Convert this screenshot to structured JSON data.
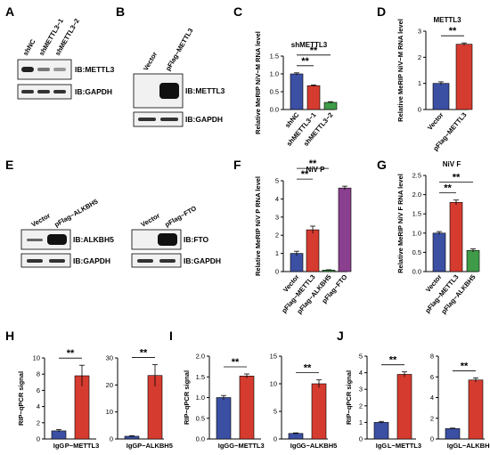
{
  "colors": {
    "blue": "#3b4fa3",
    "red": "#d63b2f",
    "green": "#3f9b48",
    "purple": "#8b3f8f",
    "err_pink": "#f08aa8"
  },
  "panel_labels": {
    "A": "A",
    "B": "B",
    "C": "C",
    "D": "D",
    "E": "E",
    "F": "F",
    "G": "G",
    "H": "H",
    "I": "I",
    "J": "J"
  },
  "blots": {
    "A": {
      "lanes": [
        "shNC",
        "shMETTL3−1",
        "shMETTL3−2"
      ],
      "label1": "IB:METTL3",
      "label2": "IB:GAPDH"
    },
    "B": {
      "lanes": [
        "Vector",
        "pFlag−METTL3"
      ],
      "label1": "IB:METTL3",
      "label2": "IB:GAPDH"
    },
    "E1": {
      "lanes": [
        "Vector",
        "pFlag−ALKBH5"
      ],
      "label1": "IB:ALKBH5",
      "label2": "IB:GAPDH"
    },
    "E2": {
      "lanes": [
        "Vector",
        "pFlag−FTO"
      ],
      "label1": "IB:FTO",
      "label2": "IB:GAPDH"
    }
  },
  "chart_data": [
    {
      "panel": "C",
      "type": "bar",
      "title": "shMETTL3",
      "ylabel": "Relative MeRIP NiV−M RNA level",
      "categories": [
        "shNC",
        "shMETTL3−1",
        "shMETTL3−2"
      ],
      "values": [
        1.0,
        0.67,
        0.2
      ],
      "errors": [
        0.03,
        0.02,
        0.02
      ],
      "colors": [
        "#3b4fa3",
        "#d63b2f",
        "#3f9b48"
      ],
      "ylim": [
        0,
        1.5
      ],
      "yticks": [
        0.0,
        0.5,
        1.0,
        1.5
      ],
      "significance": [
        {
          "from": 0,
          "to": 1,
          "label": "**"
        },
        {
          "from": 0,
          "to": 2,
          "label": "**"
        }
      ]
    },
    {
      "panel": "D",
      "type": "bar",
      "title": "METTL3",
      "ylabel": "Relative MeRIP NiV−M RNA level",
      "categories": [
        "Vector",
        "pFlag−METTL3"
      ],
      "values": [
        1.0,
        2.5
      ],
      "errors": [
        0.06,
        0.05
      ],
      "colors": [
        "#3b4fa3",
        "#d63b2f"
      ],
      "ylim": [
        0,
        3
      ],
      "yticks": [
        0,
        1,
        2,
        3
      ],
      "significance": [
        {
          "from": 0,
          "to": 1,
          "label": "**"
        }
      ]
    },
    {
      "panel": "F",
      "type": "bar",
      "title": "NiV P",
      "ylabel": "Relative MeRIP NiV P RNA level",
      "categories": [
        "Vector",
        "pFlag−METTL3",
        "pFlag−ALKBH5",
        "pFlag−FTO"
      ],
      "values": [
        1.0,
        2.3,
        0.08,
        4.6
      ],
      "errors": [
        0.12,
        0.2,
        0.02,
        0.1
      ],
      "colors": [
        "#3b4fa3",
        "#d63b2f",
        "#3f9b48",
        "#8b3f8f"
      ],
      "ylim": [
        0,
        5
      ],
      "yticks": [
        0,
        1,
        2,
        3,
        4,
        5
      ],
      "significance": [
        {
          "from": 0,
          "to": 1,
          "label": "**"
        },
        {
          "from": 0,
          "to": 2,
          "label": "**"
        }
      ]
    },
    {
      "panel": "G",
      "type": "bar",
      "title": "NiV F",
      "ylabel": "Relative MeRIP NiV F RNA level",
      "categories": [
        "Vector",
        "pFlag−METTL3",
        "pFlag−ALKBH5"
      ],
      "values": [
        1.0,
        1.8,
        0.55
      ],
      "errors": [
        0.04,
        0.06,
        0.04
      ],
      "colors": [
        "#3b4fa3",
        "#d63b2f",
        "#3f9b48"
      ],
      "ylim": [
        0,
        2.5
      ],
      "yticks": [
        0.0,
        0.5,
        1.0,
        1.5,
        2.0,
        2.5
      ],
      "significance": [
        {
          "from": 0,
          "to": 1,
          "label": "**"
        },
        {
          "from": 0,
          "to": 2,
          "label": "**"
        }
      ]
    },
    {
      "panel": "H1",
      "type": "bar",
      "title": "",
      "ylabel": "RIP−qPCR signal",
      "categories": [
        "IgG",
        "P−METTL3"
      ],
      "values": [
        1.0,
        7.8
      ],
      "errors": [
        0.15,
        1.3
      ],
      "colors": [
        "#3b4fa3",
        "#d63b2f"
      ],
      "ylim": [
        0,
        10
      ],
      "yticks": [
        0,
        2,
        4,
        6,
        8,
        10
      ],
      "significance": [
        {
          "from": 0,
          "to": 1,
          "label": "**"
        }
      ]
    },
    {
      "panel": "H2",
      "type": "bar",
      "title": "",
      "ylabel": "",
      "categories": [
        "IgG",
        "P−ALKBH5"
      ],
      "values": [
        1.0,
        23.5
      ],
      "errors": [
        0.2,
        4.0
      ],
      "colors": [
        "#3b4fa3",
        "#d63b2f"
      ],
      "ylim": [
        0,
        30
      ],
      "yticks": [
        0,
        10,
        20,
        30
      ],
      "significance": [
        {
          "from": 0,
          "to": 1,
          "label": "**"
        }
      ]
    },
    {
      "panel": "I1",
      "type": "bar",
      "title": "",
      "ylabel": "RIP−qPCR signal",
      "categories": [
        "IgG",
        "G−METTL3"
      ],
      "values": [
        1.0,
        1.52
      ],
      "errors": [
        0.05,
        0.05
      ],
      "colors": [
        "#3b4fa3",
        "#d63b2f"
      ],
      "ylim": [
        0,
        2.0
      ],
      "yticks": [
        0.0,
        0.5,
        1.0,
        1.5,
        2.0
      ],
      "significance": [
        {
          "from": 0,
          "to": 1,
          "label": "**"
        }
      ]
    },
    {
      "panel": "I2",
      "type": "bar",
      "title": "",
      "ylabel": "",
      "categories": [
        "IgG",
        "G−ALKBH5"
      ],
      "values": [
        1.0,
        10.0
      ],
      "errors": [
        0.1,
        0.7
      ],
      "colors": [
        "#3b4fa3",
        "#d63b2f"
      ],
      "ylim": [
        0,
        15
      ],
      "yticks": [
        0,
        5,
        10,
        15
      ],
      "significance": [
        {
          "from": 0,
          "to": 1,
          "label": "**"
        }
      ]
    },
    {
      "panel": "J1",
      "type": "bar",
      "title": "",
      "ylabel": "RIP−qPCR signal",
      "categories": [
        "IgG",
        "L−METTL3"
      ],
      "values": [
        1.0,
        3.9
      ],
      "errors": [
        0.06,
        0.15
      ],
      "colors": [
        "#3b4fa3",
        "#d63b2f"
      ],
      "ylim": [
        0,
        5
      ],
      "yticks": [
        0,
        1,
        2,
        3,
        4,
        5
      ],
      "significance": [
        {
          "from": 0,
          "to": 1,
          "label": "**"
        }
      ]
    },
    {
      "panel": "J2",
      "type": "bar",
      "title": "",
      "ylabel": "",
      "categories": [
        "IgG",
        "L−ALKBH5"
      ],
      "values": [
        1.0,
        5.7
      ],
      "errors": [
        0.05,
        0.2
      ],
      "colors": [
        "#3b4fa3",
        "#d63b2f"
      ],
      "ylim": [
        0,
        8
      ],
      "yticks": [
        0,
        2,
        4,
        6,
        8
      ],
      "significance": [
        {
          "from": 0,
          "to": 1,
          "label": "**"
        }
      ]
    }
  ]
}
